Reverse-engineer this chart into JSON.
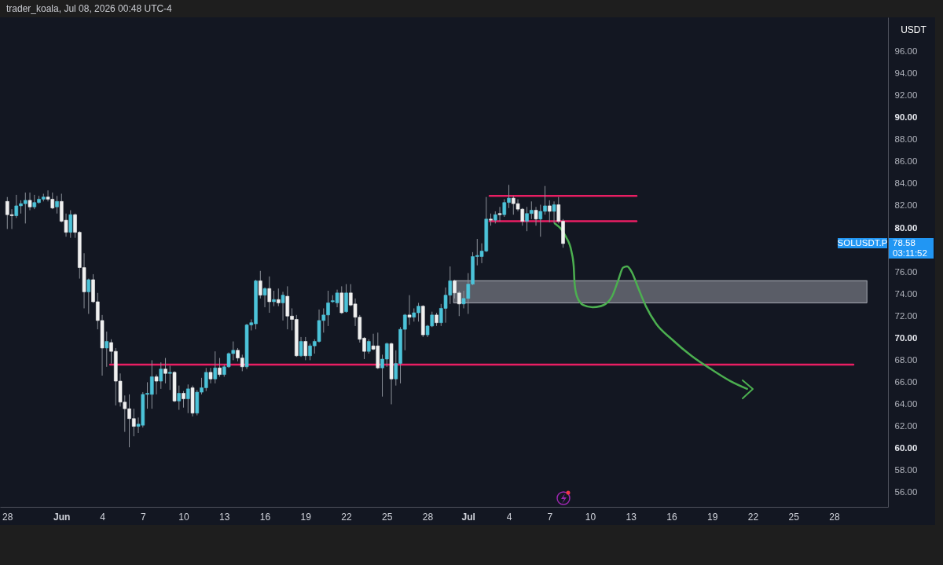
{
  "chart_data": {
    "type": "candlestick",
    "title": "trader_koala, Jul 08, 2026 00:48 UTC-4",
    "ylabel": "USDT",
    "x": [
      "2026-05-28T00:00",
      "2026-05-28T08:00",
      "2026-05-28T16:00",
      "2026-05-29T00:00",
      "2026-05-29T08:00",
      "2026-05-29T16:00",
      "2026-05-30T00:00",
      "2026-05-30T08:00",
      "2026-05-30T16:00",
      "2026-05-31T00:00",
      "2026-05-31T08:00",
      "2026-05-31T16:00",
      "2026-06-01T00:00",
      "2026-06-01T08:00",
      "2026-06-01T16:00",
      "2026-06-02T00:00",
      "2026-06-02T08:00",
      "2026-06-02T16:00",
      "2026-06-03T00:00",
      "2026-06-03T08:00",
      "2026-06-03T16:00",
      "2026-06-04T00:00",
      "2026-06-04T08:00",
      "2026-06-04T16:00",
      "2026-06-05T00:00",
      "2026-06-05T08:00",
      "2026-06-05T16:00",
      "2026-06-06T00:00",
      "2026-06-06T08:00",
      "2026-06-06T16:00",
      "2026-06-07T00:00",
      "2026-06-07T08:00",
      "2026-06-07T16:00",
      "2026-06-08T00:00",
      "2026-06-08T08:00",
      "2026-06-08T16:00",
      "2026-06-09T00:00",
      "2026-06-09T08:00",
      "2026-06-09T16:00",
      "2026-06-10T00:00",
      "2026-06-10T08:00",
      "2026-06-10T16:00",
      "2026-06-11T00:00",
      "2026-06-11T08:00",
      "2026-06-11T16:00",
      "2026-06-12T00:00",
      "2026-06-12T08:00",
      "2026-06-12T16:00",
      "2026-06-13T00:00",
      "2026-06-13T08:00",
      "2026-06-13T16:00",
      "2026-06-14T00:00",
      "2026-06-14T08:00",
      "2026-06-14T16:00",
      "2026-06-15T00:00",
      "2026-06-15T08:00",
      "2026-06-15T16:00",
      "2026-06-16T00:00",
      "2026-06-16T08:00",
      "2026-06-16T16:00",
      "2026-06-17T00:00",
      "2026-06-17T08:00",
      "2026-06-17T16:00",
      "2026-06-18T00:00",
      "2026-06-18T08:00",
      "2026-06-18T16:00",
      "2026-06-19T00:00",
      "2026-06-19T08:00",
      "2026-06-19T16:00",
      "2026-06-20T00:00",
      "2026-06-20T08:00",
      "2026-06-20T16:00",
      "2026-06-21T00:00",
      "2026-06-21T08:00",
      "2026-06-21T16:00",
      "2026-06-22T00:00",
      "2026-06-22T08:00",
      "2026-06-22T16:00",
      "2026-06-23T00:00",
      "2026-06-23T08:00",
      "2026-06-23T16:00",
      "2026-06-24T00:00",
      "2026-06-24T08:00",
      "2026-06-24T16:00",
      "2026-06-25T00:00",
      "2026-06-25T08:00",
      "2026-06-25T16:00",
      "2026-06-26T00:00",
      "2026-06-26T08:00",
      "2026-06-26T16:00",
      "2026-06-27T00:00",
      "2026-06-27T08:00",
      "2026-06-27T16:00",
      "2026-06-28T00:00",
      "2026-06-28T08:00",
      "2026-06-28T16:00",
      "2026-06-29T00:00",
      "2026-06-29T08:00",
      "2026-06-29T16:00",
      "2026-06-30T00:00",
      "2026-06-30T08:00",
      "2026-06-30T16:00",
      "2026-07-01T00:00",
      "2026-07-01T08:00",
      "2026-07-01T16:00",
      "2026-07-02T00:00",
      "2026-07-02T08:00",
      "2026-07-02T16:00",
      "2026-07-03T00:00",
      "2026-07-03T08:00",
      "2026-07-03T16:00",
      "2026-07-04T00:00",
      "2026-07-04T08:00",
      "2026-07-04T16:00",
      "2026-07-05T00:00",
      "2026-07-05T08:00",
      "2026-07-05T16:00",
      "2026-07-06T00:00",
      "2026-07-06T08:00",
      "2026-07-06T16:00",
      "2026-07-07T00:00",
      "2026-07-07T08:00",
      "2026-07-07T16:00",
      "2026-07-08T00:00"
    ],
    "ohlc": [
      [
        82.4,
        82.8,
        79.9,
        81.2
      ],
      [
        81.2,
        81.7,
        79.9,
        81.1
      ],
      [
        81.1,
        83.0,
        80.9,
        82.0
      ],
      [
        82.0,
        82.5,
        81.3,
        82.2
      ],
      [
        82.2,
        83.2,
        80.4,
        82.5
      ],
      [
        82.5,
        83.2,
        81.6,
        81.9
      ],
      [
        81.9,
        83.0,
        81.7,
        82.3
      ],
      [
        82.3,
        82.9,
        82.2,
        82.6
      ],
      [
        82.6,
        83.1,
        82.4,
        82.8
      ],
      [
        82.8,
        83.4,
        82.4,
        82.6
      ],
      [
        82.6,
        83.2,
        81.7,
        81.8
      ],
      [
        81.9,
        82.9,
        81.3,
        82.4
      ],
      [
        82.4,
        83.1,
        80.5,
        80.6
      ],
      [
        80.7,
        81.3,
        79.2,
        79.6
      ],
      [
        79.6,
        81.6,
        79.1,
        81.2
      ],
      [
        81.2,
        81.3,
        79.1,
        79.6
      ],
      [
        79.6,
        79.7,
        75.4,
        76.4
      ],
      [
        76.4,
        77.7,
        72.7,
        74.2
      ],
      [
        74.2,
        75.4,
        72.2,
        75.3
      ],
      [
        75.3,
        75.8,
        73.2,
        73.3
      ],
      [
        73.3,
        74.1,
        70.8,
        71.6
      ],
      [
        71.6,
        72.1,
        66.6,
        69.1
      ],
      [
        69.1,
        70.6,
        67.4,
        69.7
      ],
      [
        69.6,
        69.9,
        67.7,
        68.8
      ],
      [
        68.8,
        69.1,
        63.9,
        66.1
      ],
      [
        66.1,
        66.8,
        63.8,
        64.2
      ],
      [
        64.2,
        64.8,
        61.5,
        63.6
      ],
      [
        63.6,
        64.9,
        60.1,
        62.7
      ],
      [
        62.7,
        63.6,
        61.1,
        62.0
      ],
      [
        62.0,
        62.8,
        61.4,
        62.2
      ],
      [
        62.1,
        65.1,
        61.9,
        64.9
      ],
      [
        64.9,
        66.0,
        63.6,
        65.0
      ],
      [
        64.9,
        68.0,
        63.6,
        66.5
      ],
      [
        66.5,
        66.7,
        64.9,
        66.1
      ],
      [
        66.1,
        67.8,
        65.4,
        67.2
      ],
      [
        67.2,
        68.2,
        65.9,
        66.8
      ],
      [
        66.8,
        67.5,
        65.3,
        66.9
      ],
      [
        66.9,
        67.0,
        64.2,
        64.3
      ],
      [
        64.3,
        65.7,
        63.5,
        65.0
      ],
      [
        65.0,
        65.2,
        63.7,
        64.5
      ],
      [
        64.5,
        65.8,
        63.2,
        65.4
      ],
      [
        65.5,
        65.7,
        62.9,
        63.2
      ],
      [
        63.2,
        65.3,
        63.0,
        65.1
      ],
      [
        65.1,
        66.4,
        64.9,
        65.5
      ],
      [
        65.5,
        67.3,
        65.2,
        66.9
      ],
      [
        66.9,
        67.3,
        65.9,
        66.3
      ],
      [
        66.3,
        68.8,
        65.9,
        67.3
      ],
      [
        67.3,
        68.2,
        66.5,
        66.7
      ],
      [
        66.7,
        67.6,
        66.5,
        67.4
      ],
      [
        67.4,
        68.7,
        67.3,
        68.6
      ],
      [
        68.6,
        69.7,
        68.0,
        68.9
      ],
      [
        68.9,
        69.1,
        67.9,
        68.2
      ],
      [
        68.2,
        68.5,
        67.0,
        67.4
      ],
      [
        67.4,
        71.3,
        67.2,
        71.2
      ],
      [
        71.2,
        71.7,
        70.7,
        71.4
      ],
      [
        71.3,
        75.3,
        70.8,
        75.2
      ],
      [
        75.2,
        76.1,
        73.6,
        73.9
      ],
      [
        73.9,
        74.6,
        72.8,
        74.5
      ],
      [
        74.5,
        75.6,
        72.3,
        73.3
      ],
      [
        73.3,
        74.3,
        72.9,
        73.5
      ],
      [
        73.5,
        74.5,
        72.9,
        73.2
      ],
      [
        73.2,
        74.2,
        71.6,
        73.9
      ],
      [
        73.8,
        74.7,
        70.8,
        72.0
      ],
      [
        72.0,
        72.7,
        70.7,
        71.7
      ],
      [
        71.7,
        72.1,
        68.3,
        68.4
      ],
      [
        68.4,
        70.1,
        68.3,
        69.7
      ],
      [
        69.7,
        70.1,
        68.0,
        68.4
      ],
      [
        68.4,
        69.5,
        68.0,
        69.3
      ],
      [
        69.3,
        69.9,
        68.6,
        69.7
      ],
      [
        69.7,
        72.6,
        69.6,
        71.6
      ],
      [
        71.6,
        72.7,
        70.5,
        72.1
      ],
      [
        72.1,
        74.3,
        71.1,
        73.2
      ],
      [
        73.3,
        73.9,
        73.2,
        73.4
      ],
      [
        73.2,
        74.4,
        72.8,
        74.1
      ],
      [
        74.1,
        74.7,
        72.2,
        72.3
      ],
      [
        72.4,
        74.9,
        72.3,
        74.1
      ],
      [
        74.1,
        74.9,
        72.9,
        73.0
      ],
      [
        73.1,
        73.6,
        71.1,
        71.9
      ],
      [
        71.9,
        72.1,
        69.6,
        69.9
      ],
      [
        70.0,
        70.1,
        68.1,
        68.8
      ],
      [
        68.8,
        69.9,
        68.6,
        69.7
      ],
      [
        69.3,
        70.4,
        68.9,
        69.0
      ],
      [
        69.3,
        70.5,
        67.2,
        67.3
      ],
      [
        67.3,
        68.5,
        64.7,
        68.1
      ],
      [
        68.1,
        69.6,
        67.4,
        69.5
      ],
      [
        69.5,
        69.6,
        64.0,
        66.3
      ],
      [
        66.3,
        68.9,
        65.7,
        67.7
      ],
      [
        67.7,
        71.0,
        65.9,
        70.8
      ],
      [
        70.8,
        72.2,
        68.9,
        72.1
      ],
      [
        72.1,
        73.9,
        71.2,
        71.9
      ],
      [
        71.9,
        72.7,
        71.5,
        72.3
      ],
      [
        72.3,
        73.2,
        71.5,
        72.9
      ],
      [
        72.9,
        73.0,
        70.1,
        70.3
      ],
      [
        70.3,
        71.2,
        70.1,
        71.1
      ],
      [
        71.1,
        72.4,
        71.0,
        72.1
      ],
      [
        72.1,
        72.3,
        71.1,
        71.4
      ],
      [
        71.4,
        73.1,
        71.1,
        72.7
      ],
      [
        72.7,
        74.6,
        71.4,
        73.9
      ],
      [
        73.9,
        76.5,
        73.1,
        75.2
      ],
      [
        75.2,
        75.3,
        73.6,
        74.1
      ],
      [
        74.1,
        74.3,
        72.0,
        73.1
      ],
      [
        73.1,
        74.3,
        72.7,
        73.6
      ],
      [
        73.6,
        75.9,
        72.2,
        74.9
      ],
      [
        74.9,
        77.8,
        74.8,
        77.4
      ],
      [
        77.4,
        79.0,
        76.6,
        77.5
      ],
      [
        77.4,
        78.6,
        76.8,
        77.9
      ],
      [
        77.9,
        82.8,
        77.8,
        80.8
      ],
      [
        80.8,
        81.3,
        80.2,
        80.7
      ],
      [
        80.7,
        81.5,
        80.4,
        81.2
      ],
      [
        81.3,
        81.9,
        80.6,
        81.2
      ],
      [
        81.2,
        82.6,
        81.0,
        82.3
      ],
      [
        82.3,
        83.9,
        81.8,
        82.7
      ],
      [
        82.7,
        82.9,
        81.2,
        82.2
      ],
      [
        82.2,
        82.6,
        81.5,
        81.7
      ],
      [
        81.7,
        81.8,
        80.2,
        80.6
      ],
      [
        80.6,
        81.9,
        79.7,
        81.3
      ],
      [
        81.3,
        82.4,
        80.8,
        81.6
      ],
      [
        81.6,
        81.9,
        80.2,
        80.8
      ],
      [
        80.8,
        82.1,
        79.2,
        81.5
      ],
      [
        81.5,
        83.8,
        81.2,
        82.0
      ],
      [
        82.0,
        82.5,
        80.5,
        81.5
      ],
      [
        81.5,
        82.4,
        80.4,
        82.1
      ],
      [
        82.1,
        82.8,
        80.4,
        80.6
      ],
      [
        80.6,
        80.8,
        78.2,
        78.58
      ]
    ],
    "colors": [
      "#f0f0f0",
      "#f0f0f0",
      "#4cc3d9",
      "#4cc3d9",
      "#4cc3d9",
      "#f0f0f0",
      "#4cc3d9",
      "#4cc3d9",
      "#4cc3d9",
      "#f0f0f0",
      "#f0f0f0",
      "#4cc3d9",
      "#f0f0f0",
      "#f0f0f0",
      "#4cc3d9",
      "#f0f0f0",
      "#f0f0f0",
      "#f0f0f0",
      "#4cc3d9",
      "#f0f0f0",
      "#f0f0f0",
      "#f0f0f0",
      "#4cc3d9",
      "#f0f0f0",
      "#f0f0f0",
      "#f0f0f0",
      "#f0f0f0",
      "#f0f0f0",
      "#f0f0f0",
      "#4cc3d9",
      "#4cc3d9",
      "#4cc3d9",
      "#4cc3d9",
      "#f0f0f0",
      "#4cc3d9",
      "#f0f0f0",
      "#4cc3d9",
      "#f0f0f0",
      "#4cc3d9",
      "#f0f0f0",
      "#4cc3d9",
      "#f0f0f0",
      "#4cc3d9",
      "#4cc3d9",
      "#4cc3d9",
      "#f0f0f0",
      "#4cc3d9",
      "#f0f0f0",
      "#4cc3d9",
      "#4cc3d9",
      "#4cc3d9",
      "#f0f0f0",
      "#f0f0f0",
      "#4cc3d9",
      "#4cc3d9",
      "#4cc3d9",
      "#f0f0f0",
      "#4cc3d9",
      "#f0f0f0",
      "#4cc3d9",
      "#f0f0f0",
      "#4cc3d9",
      "#f0f0f0",
      "#f0f0f0",
      "#f0f0f0",
      "#4cc3d9",
      "#f0f0f0",
      "#4cc3d9",
      "#4cc3d9",
      "#4cc3d9",
      "#4cc3d9",
      "#4cc3d9",
      "#4cc3d9",
      "#4cc3d9",
      "#f0f0f0",
      "#4cc3d9",
      "#f0f0f0",
      "#f0f0f0",
      "#f0f0f0",
      "#f0f0f0",
      "#4cc3d9",
      "#f0f0f0",
      "#f0f0f0",
      "#4cc3d9",
      "#4cc3d9",
      "#f0f0f0",
      "#4cc3d9",
      "#4cc3d9",
      "#4cc3d9",
      "#f0f0f0",
      "#4cc3d9",
      "#4cc3d9",
      "#f0f0f0",
      "#4cc3d9",
      "#4cc3d9",
      "#f0f0f0",
      "#4cc3d9",
      "#4cc3d9",
      "#4cc3d9",
      "#f0f0f0",
      "#f0f0f0",
      "#4cc3d9",
      "#4cc3d9",
      "#4cc3d9",
      "#4cc3d9",
      "#4cc3d9",
      "#4cc3d9",
      "#f0f0f0",
      "#4cc3d9",
      "#f0f0f0",
      "#4cc3d9",
      "#4cc3d9",
      "#f0f0f0",
      "#f0f0f0",
      "#f0f0f0",
      "#4cc3d9",
      "#4cc3d9",
      "#f0f0f0",
      "#4cc3d9",
      "#4cc3d9",
      "#f0f0f0",
      "#4cc3d9",
      "#f0f0f0",
      "#f0f0f0"
    ],
    "series": [
      {
        "type": "line",
        "x": [
          "2026-07-02T14:00",
          "2026-07-13T10:00"
        ],
        "values": [
          82.9,
          82.9
        ],
        "color": "#e91e63"
      },
      {
        "type": "line",
        "x": [
          "2026-07-02T14:00",
          "2026-07-13T10:00"
        ],
        "values": [
          80.6,
          80.6
        ],
        "color": "#e91e63"
      },
      {
        "type": "line",
        "x": [
          "2026-06-04T14:00",
          "2026-07-29T10:00"
        ],
        "values": [
          67.6,
          67.6
        ],
        "color": "#e91e63"
      },
      {
        "type": "line",
        "x": [
          "2026-06-29T22:00",
          "2026-07-30T10:00"
        ],
        "values": [
          75.2,
          75.2
        ],
        "lower": [
          73.2,
          73.2
        ],
        "upper": [
          75.2,
          75.2
        ],
        "color": "#9598a1"
      },
      {
        "type": "line",
        "x": [
          "2026-07-07T09:35",
          "2026-07-08T05:00",
          "2026-07-08T14:40",
          "2026-07-08T18:50",
          "2026-07-08T20:20",
          "2026-07-09T00:30",
          "2026-07-09T11:35",
          "2026-07-10T04:10",
          "2026-07-10T23:35",
          "2026-07-11T14:50",
          "2026-07-12T02:00",
          "2026-07-12T10:20",
          "2026-07-12T17:20",
          "2026-07-13T01:30",
          "2026-07-13T12:40",
          "2026-07-14T02:35",
          "2026-07-14T20:50",
          "2026-07-16T00:30",
          "2026-07-17T11:10",
          "2026-07-19T00:40",
          "2026-07-20T08:35",
          "2026-07-21T13:50"
        ],
        "values": [
          80.4,
          79.2,
          77.9,
          76.5,
          75.0,
          73.8,
          73.0,
          72.8,
          73.0,
          73.8,
          75.3,
          76.4,
          76.5,
          76.0,
          74.6,
          72.9,
          71.3,
          69.9,
          68.4,
          67.1,
          66.1,
          65.4
        ],
        "color": "#4caf50"
      }
    ],
    "annotations": [
      "SOLUSDT.P",
      "78.58",
      "03:11:52"
    ],
    "xlim": [
      "2026-05-27T11:05",
      "2026-07-31T23:15"
    ],
    "xticks": [
      {
        "value": "2026-05-28T00:00",
        "label": "28"
      },
      {
        "value": "2026-06-01T00:00",
        "label": "Jun"
      },
      {
        "value": "2026-06-04T00:00",
        "label": "4"
      },
      {
        "value": "2026-06-07T00:00",
        "label": "7"
      },
      {
        "value": "2026-06-10T00:00",
        "label": "10"
      },
      {
        "value": "2026-06-13T00:00",
        "label": "13"
      },
      {
        "value": "2026-06-16T00:00",
        "label": "16"
      },
      {
        "value": "2026-06-19T00:00",
        "label": "19"
      },
      {
        "value": "2026-06-22T00:00",
        "label": "22"
      },
      {
        "value": "2026-06-25T00:00",
        "label": "25"
      },
      {
        "value": "2026-06-28T00:00",
        "label": "28"
      },
      {
        "value": "2026-07-01T00:00",
        "label": "Jul"
      },
      {
        "value": "2026-07-04T00:00",
        "label": "4"
      },
      {
        "value": "2026-07-07T00:00",
        "label": "7"
      },
      {
        "value": "2026-07-10T00:00",
        "label": "10"
      },
      {
        "value": "2026-07-13T00:00",
        "label": "13"
      },
      {
        "value": "2026-07-16T00:00",
        "label": "16"
      },
      {
        "value": "2026-07-19T00:00",
        "label": "19"
      },
      {
        "value": "2026-07-22T00:00",
        "label": "22"
      },
      {
        "value": "2026-07-25T00:00",
        "label": "25"
      },
      {
        "value": "2026-07-28T00:00",
        "label": "28"
      }
    ],
    "ylim": [
      54.7,
      99.1
    ],
    "yticks": [
      {
        "value": 56,
        "label": "56.00"
      },
      {
        "value": 58,
        "label": "58.00"
      },
      {
        "value": 60,
        "label": "60.00"
      },
      {
        "value": 62,
        "label": "62.00"
      },
      {
        "value": 64,
        "label": "64.00"
      },
      {
        "value": 66,
        "label": "66.00"
      },
      {
        "value": 68,
        "label": "68.00"
      },
      {
        "value": 70,
        "label": "70.00"
      },
      {
        "value": 72,
        "label": "72.00"
      },
      {
        "value": 74,
        "label": "74.00"
      },
      {
        "value": 76,
        "label": "76.00"
      },
      {
        "value": 80,
        "label": "80.00"
      },
      {
        "value": 82,
        "label": "82.00"
      },
      {
        "value": 84,
        "label": "84.00"
      },
      {
        "value": 86,
        "label": "86.00"
      },
      {
        "value": 88,
        "label": "88.00"
      },
      {
        "value": 90,
        "label": "90.00"
      },
      {
        "value": 92,
        "label": "92.00"
      },
      {
        "value": 94,
        "label": "94.00"
      },
      {
        "value": 96,
        "label": "96.00"
      }
    ]
  }
}
